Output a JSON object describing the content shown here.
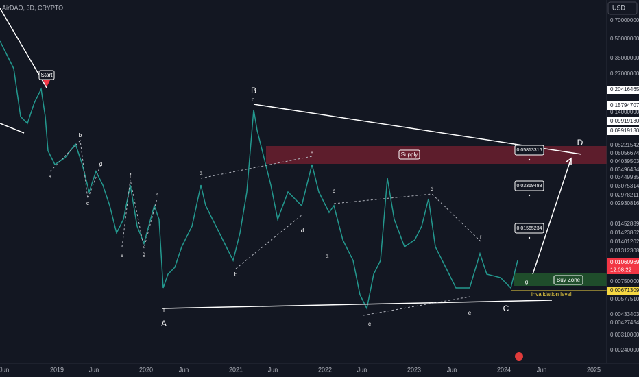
{
  "header": {
    "symbol": "AirDAO, 3D, CRYPTO",
    "currency": "USD"
  },
  "price_axis": [
    "0.70000000",
    "0.50000000",
    "0.35000000",
    "0.27000000",
    "0.20416465",
    "0.15794707",
    "0.14000000",
    "0.09919130",
    "0.09919130",
    "0.05221542",
    "0.05056674",
    "0.04039503",
    "0.03496434",
    "0.03449935",
    "0.03075314",
    "0.02978211",
    "0.02930816",
    "0.01452889",
    "0.01423862",
    "0.01401202",
    "0.01312308",
    "0.01060969",
    "0.00750000",
    "0.00671309",
    "0.00577510",
    "0.00433403",
    "0.00427454",
    "0.00310000",
    "0.00240000"
  ],
  "countdown": "12:08:22",
  "time_axis": [
    "Jun",
    "2019",
    "Jun",
    "2020",
    "Jun",
    "2021",
    "Jun",
    "2022",
    "Jun",
    "2023",
    "Jun",
    "2024",
    "Jun",
    "2025"
  ],
  "annotations": {
    "start": "Start",
    "supply": "Supply",
    "buy_zone": "Buy Zone",
    "invalidation": "invalidation level",
    "targets": [
      "0.05813316",
      "0.03369488",
      "0.01565234"
    ],
    "waves": [
      "a",
      "b",
      "c",
      "d",
      "e",
      "f",
      "g",
      "h",
      "i",
      "A",
      "B",
      "c",
      "a",
      "b",
      "d",
      "e",
      "b",
      "a",
      "c",
      "d",
      "f",
      "e",
      "C",
      "g",
      "D"
    ]
  }
}
